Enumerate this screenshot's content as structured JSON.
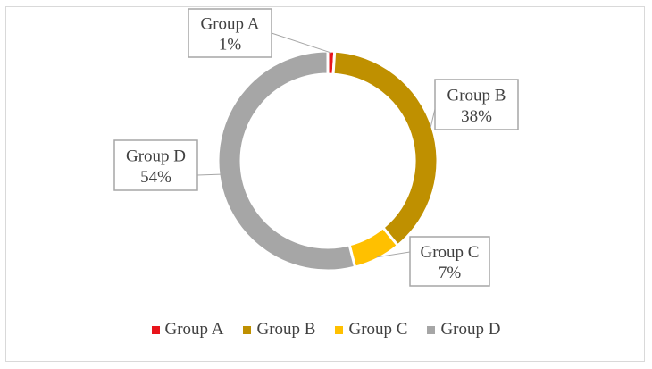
{
  "chart_data": {
    "type": "pie",
    "variant": "doughnut",
    "categories": [
      "Group A",
      "Group B",
      "Group C",
      "Group D"
    ],
    "values": [
      1,
      38,
      7,
      54
    ],
    "labels": [
      "1%",
      "38%",
      "7%",
      "54%"
    ],
    "colors": [
      "#e8141b",
      "#bf9000",
      "#ffc000",
      "#a6a6a6"
    ],
    "legend_position": "bottom",
    "title": ""
  }
}
